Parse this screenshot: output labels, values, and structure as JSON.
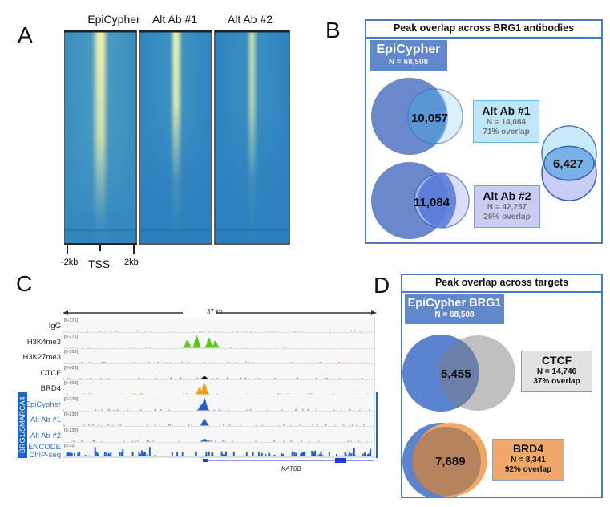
{
  "figure": {
    "panels": {
      "A": {
        "letter": "A",
        "heatmaps": [
          {
            "title": "EpiCypher",
            "signal_strength": "high"
          },
          {
            "title": "Alt Ab #1",
            "signal_strength": "medium"
          },
          {
            "title": "Alt Ab #2",
            "signal_strength": "low"
          }
        ],
        "axis": {
          "left": "-2kb",
          "center": "TSS",
          "right": "2kb"
        }
      },
      "B": {
        "letter": "B",
        "title": "Peak overlap across BRG1 antibodies",
        "reference": {
          "name": "EpiCypher",
          "n_label": "N = 68,508"
        },
        "comparisons": [
          {
            "name": "Alt Ab #1",
            "n_label": "N = 14,084",
            "overlap_label": "71% overlap",
            "intersection": "10,057"
          },
          {
            "name": "Alt Ab #2",
            "n_label": "N = 42,257",
            "overlap_label": "26% overlap",
            "intersection": "11,084"
          }
        ],
        "alt_ab_intersection": "6,427"
      },
      "C": {
        "letter": "C",
        "scale_label": "37 kb",
        "group_label": "BRG1/SMARCA4",
        "gene_label": "KAT6B",
        "tracks": [
          {
            "name": "IgG",
            "range": "[0-171]",
            "color": "#7a7a7a",
            "blue_label": false
          },
          {
            "name": "H3K4me3",
            "range": "[0-171]",
            "color": "#5cc21c",
            "blue_label": false
          },
          {
            "name": "H3K27me3",
            "range": "[0-163]",
            "color": "#e04040",
            "blue_label": false
          },
          {
            "name": "CTCF",
            "range": "[0-803]",
            "color": "#111111",
            "blue_label": false
          },
          {
            "name": "BRD4",
            "range": "[0-803]",
            "color": "#f39a1e",
            "blue_label": false
          },
          {
            "name": "EpiCypher",
            "range": "[0-230]",
            "color": "#1e5cc8",
            "blue_label": true
          },
          {
            "name": "Alt Ab #1",
            "range": "[0-230]",
            "color": "#1e5cc8",
            "blue_label": true
          },
          {
            "name": "Alt Ab #2",
            "range": "[0-230]",
            "color": "#1e5cc8",
            "blue_label": true
          },
          {
            "name": "ENCODE\nChIP-seq",
            "range": "[0-12]",
            "color": "#1e5cc8",
            "blue_label": true
          }
        ]
      },
      "D": {
        "letter": "D",
        "title": "Peak overlap across targets",
        "reference": {
          "name": "EpiCypher BRG1",
          "n_label": "N = 68,508"
        },
        "comparisons": [
          {
            "name": "CTCF",
            "n_label": "N = 14,746",
            "overlap_label": "37% overlap",
            "intersection": "5,455"
          },
          {
            "name": "BRD4",
            "n_label": "N = 8,341",
            "overlap_label": "92% overlap",
            "intersection": "7,689"
          }
        ]
      }
    }
  },
  "colors": {
    "epicypher_blue": "#4f74c6",
    "alt1_light": "#bfe6f7",
    "alt2_light": "#c8cdf4",
    "frame_blue": "#4a7cc0",
    "ctcf_gray": "#b9b9b9",
    "brd4_orange": "#f0a868"
  }
}
